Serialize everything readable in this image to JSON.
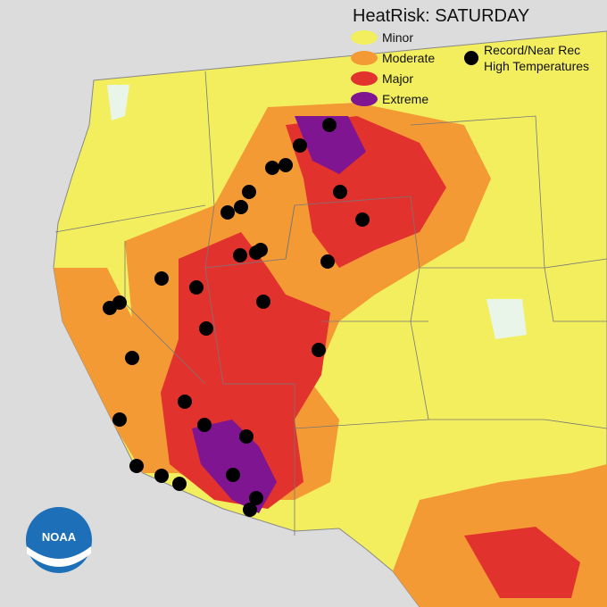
{
  "title": "HeatRisk: SATURDAY",
  "legend": {
    "items": [
      {
        "label": "Minor",
        "color": "#f3ee5e"
      },
      {
        "label": "Moderate",
        "color": "#f49a35"
      },
      {
        "label": "Major",
        "color": "#e2322e"
      },
      {
        "label": "Extreme",
        "color": "#7f1590"
      }
    ],
    "marker_label": [
      "Record/Near Rec",
      "High Temperatures"
    ]
  },
  "logo": "NOAA"
}
